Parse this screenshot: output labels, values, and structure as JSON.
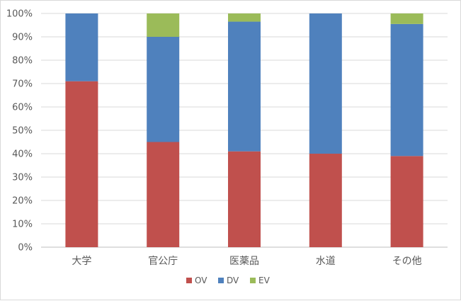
{
  "chart_data": {
    "type": "bar",
    "stacked": true,
    "percent": true,
    "categories": [
      "大学",
      "官公庁",
      "医薬品",
      "水道",
      "その他"
    ],
    "series": [
      {
        "name": "OV",
        "color": "#c0504d",
        "values": [
          71,
          45,
          41,
          40,
          39
        ]
      },
      {
        "name": "DV",
        "color": "#4f81bd",
        "values": [
          29,
          45,
          55.5,
          60,
          56.5
        ]
      },
      {
        "name": "EV",
        "color": "#9bbb59",
        "values": [
          0,
          10,
          3.5,
          0,
          4.5
        ]
      }
    ],
    "title": "",
    "xlabel": "",
    "ylabel": "",
    "ylim": [
      0,
      100
    ],
    "yticks": [
      "0%",
      "10%",
      "20%",
      "30%",
      "40%",
      "50%",
      "60%",
      "70%",
      "80%",
      "90%",
      "100%"
    ],
    "grid": true,
    "legend_position": "bottom"
  }
}
